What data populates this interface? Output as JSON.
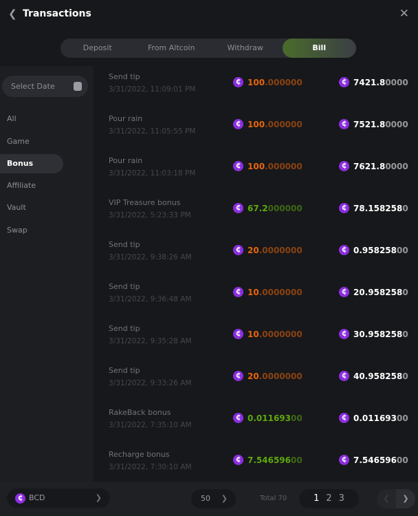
{
  "header": {
    "title": "Transactions",
    "back_icon": "chevron-left-icon",
    "close_icon": "close-icon"
  },
  "tabs": [
    {
      "label": "Deposit"
    },
    {
      "label": "From Altcoin"
    },
    {
      "label": "Withdraw"
    },
    {
      "label": "Bill",
      "active": true
    }
  ],
  "sidebar": {
    "date_placeholder": "Select Date",
    "items": [
      {
        "label": "All"
      },
      {
        "label": "Game"
      },
      {
        "label": "Bonus",
        "active": true
      },
      {
        "label": "Affiliate"
      },
      {
        "label": "Vault"
      },
      {
        "label": "Swap"
      }
    ]
  },
  "colors": {
    "negative": "#e8650a",
    "positive": "#5fa80f",
    "coin": "#8b2ee0"
  },
  "rows": [
    {
      "title": "Send tip",
      "date": "3/31/2022, 11:09:01 PM",
      "amount": "100",
      "amount_tail": ".000000",
      "type": "negative",
      "balance": "7421.8",
      "balance_tail": "0000"
    },
    {
      "title": "Pour rain",
      "date": "3/31/2022, 11:05:55 PM",
      "amount": "100",
      "amount_tail": ".000000",
      "type": "negative",
      "balance": "7521.8",
      "balance_tail": "0000"
    },
    {
      "title": "Pour rain",
      "date": "3/31/2022, 11:03:18 PM",
      "amount": "100",
      "amount_tail": ".000000",
      "type": "negative",
      "balance": "7621.8",
      "balance_tail": "0000"
    },
    {
      "title": "VIP Treasure bonus",
      "date": "3/31/2022, 5:23:33 PM",
      "amount": "67.2",
      "amount_tail": "000000",
      "type": "positive",
      "balance": "78.158258",
      "balance_tail": "0"
    },
    {
      "title": "Send tip",
      "date": "3/31/2022, 9:38:26 AM",
      "amount": "20",
      "amount_tail": ".0000000",
      "type": "negative",
      "balance": "0.958258",
      "balance_tail": "00"
    },
    {
      "title": "Send tip",
      "date": "3/31/2022, 9:36:48 AM",
      "amount": "10",
      "amount_tail": ".0000000",
      "type": "negative",
      "balance": "20.958258",
      "balance_tail": "0"
    },
    {
      "title": "Send tip",
      "date": "3/31/2022, 9:35:28 AM",
      "amount": "10",
      "amount_tail": ".0000000",
      "type": "negative",
      "balance": "30.958258",
      "balance_tail": "0"
    },
    {
      "title": "Send tip",
      "date": "3/31/2022, 9:33:26 AM",
      "amount": "20",
      "amount_tail": ".0000000",
      "type": "negative",
      "balance": "40.958258",
      "balance_tail": "0"
    },
    {
      "title": "RakeBack bonus",
      "date": "3/31/2022, 7:35:10 AM",
      "amount": "0.011693",
      "amount_tail": "00",
      "type": "positive",
      "balance": "0.011693",
      "balance_tail": "00"
    },
    {
      "title": "Recharge bonus",
      "date": "3/31/2022, 7:30:10 AM",
      "amount": "7.546596",
      "amount_tail": "00",
      "type": "positive",
      "balance": "7.546596",
      "balance_tail": "00"
    }
  ],
  "footer": {
    "currency": "BCD",
    "coin_symbol": "₵",
    "page_size": "50",
    "total": "Total 70",
    "pages": [
      "1",
      "2",
      "3"
    ],
    "current_page": "1"
  }
}
